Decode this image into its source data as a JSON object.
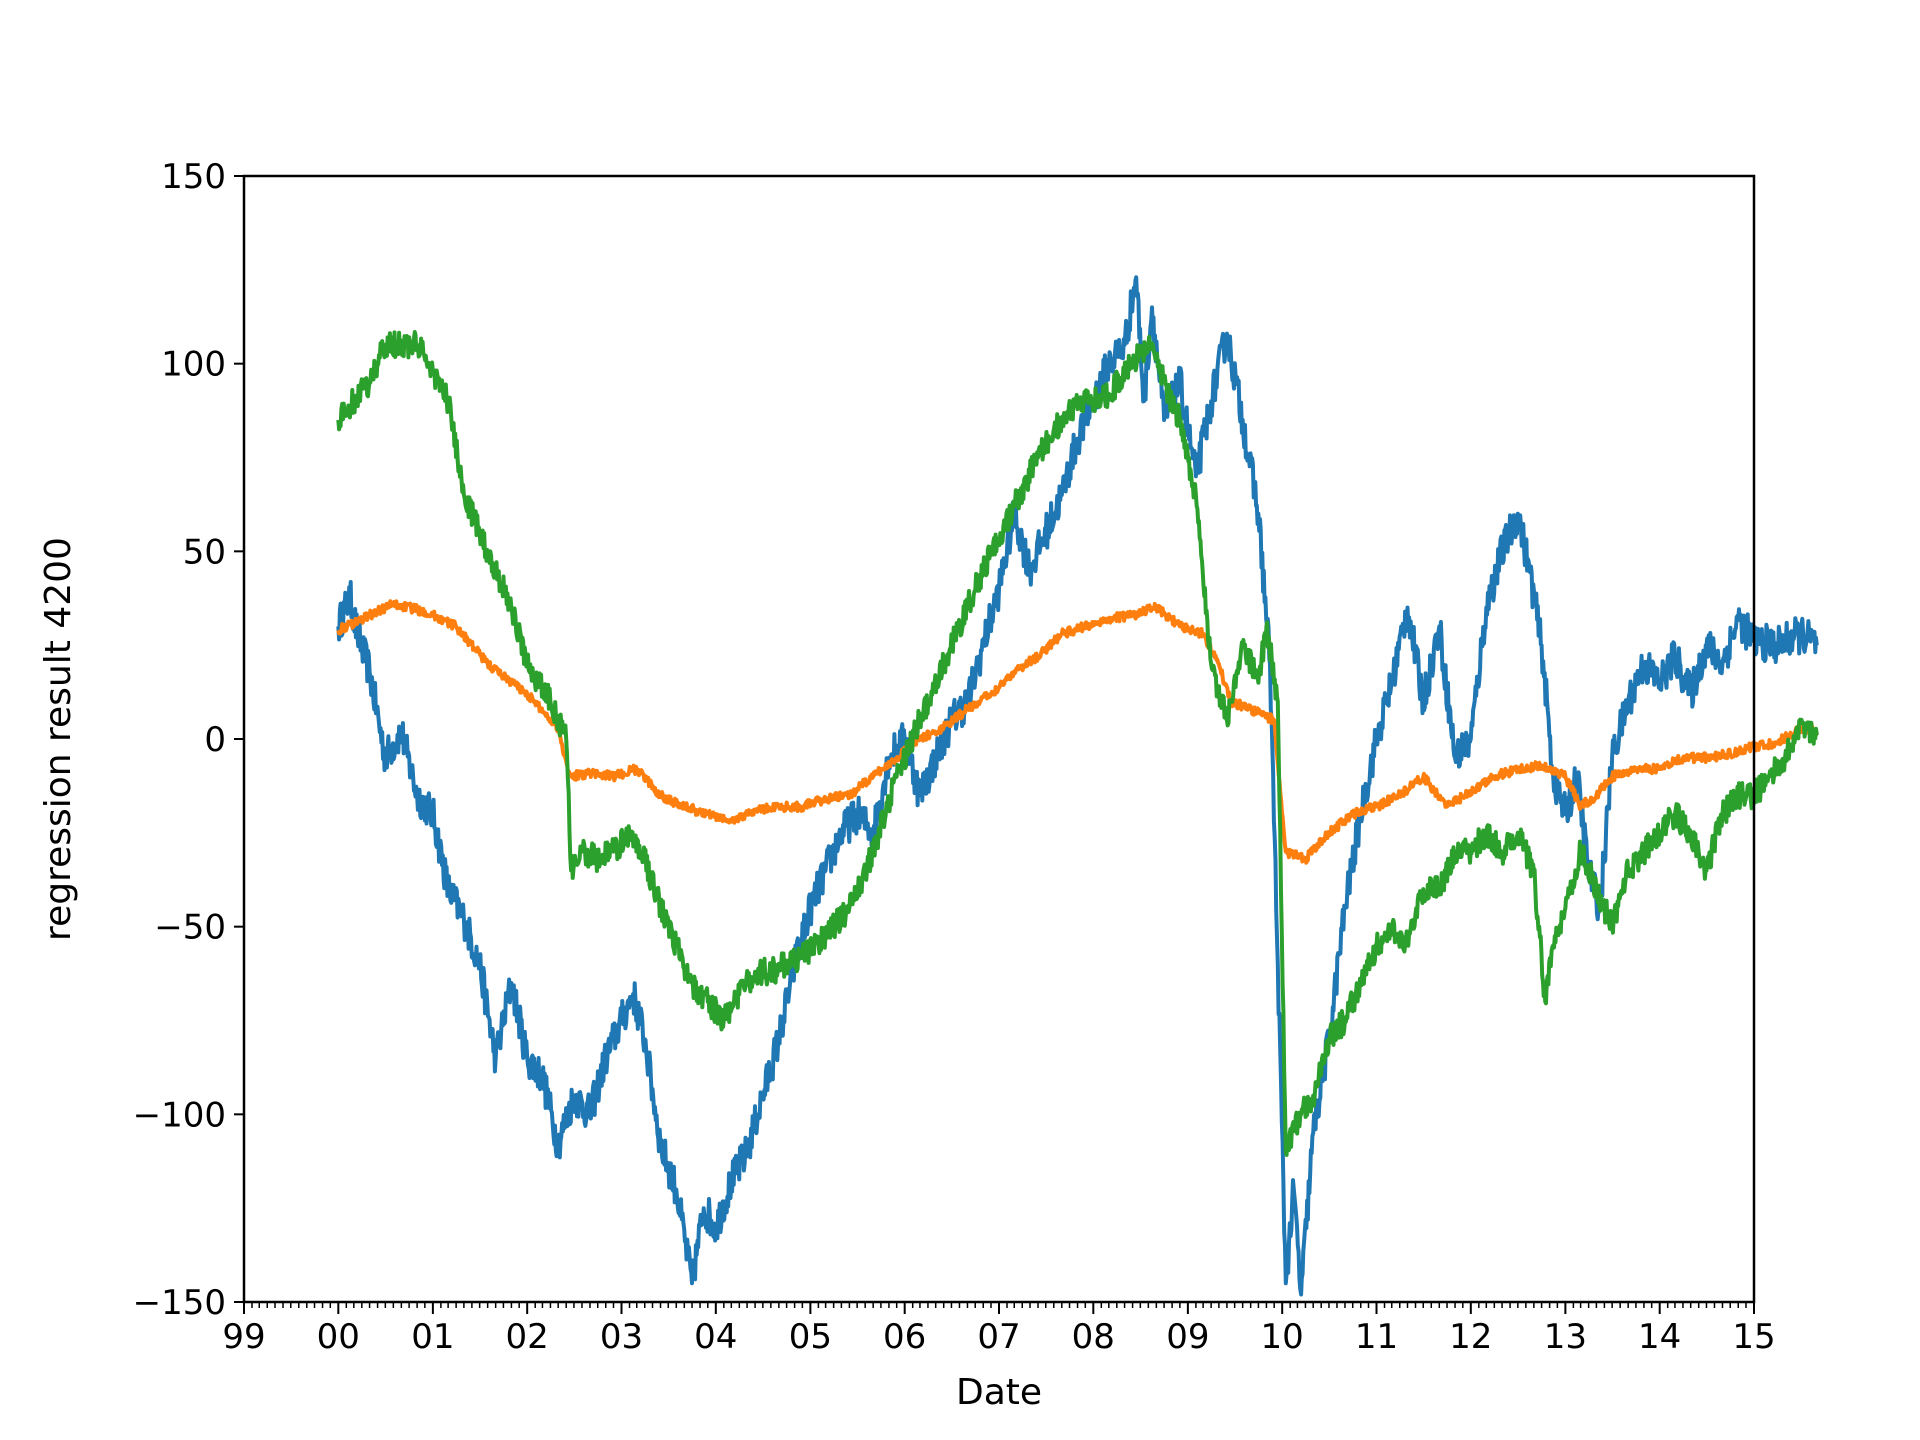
{
  "chart_data": {
    "type": "line",
    "title": "",
    "xlabel": "Date",
    "ylabel": "regression result 4200",
    "xlim": [
      "1999-01-01",
      "2015-01-01"
    ],
    "ylim": [
      -150,
      150
    ],
    "yticks": [
      -150,
      -100,
      -50,
      0,
      50,
      100,
      150
    ],
    "yticklabels": [
      "−150",
      "−100",
      "−50",
      "0",
      "50",
      "100",
      "150"
    ],
    "xticks": [
      "1999-01-01",
      "2000-01-01",
      "2001-01-01",
      "2002-01-01",
      "2003-01-01",
      "2004-01-01",
      "2005-01-01",
      "2006-01-01",
      "2007-01-01",
      "2008-01-01",
      "2009-01-01",
      "2010-01-01",
      "2011-01-01",
      "2012-01-01",
      "2013-01-01",
      "2014-01-01",
      "2015-01-01"
    ],
    "xticklabels": [
      "99",
      "00",
      "01",
      "02",
      "03",
      "04",
      "05",
      "06",
      "07",
      "08",
      "09",
      "10",
      "11",
      "12",
      "13",
      "14",
      "15"
    ],
    "grid": false,
    "legend": "none",
    "series": [
      {
        "color": "#1f77b4",
        "points": [
          [
            "2000-01-01",
            30
          ],
          [
            "2000-02-15",
            38
          ],
          [
            "2000-03-15",
            28
          ],
          [
            "2000-05-01",
            18
          ],
          [
            "2000-07-01",
            -5
          ],
          [
            "2000-09-01",
            2
          ],
          [
            "2000-11-01",
            -15
          ],
          [
            "2001-01-01",
            -20
          ],
          [
            "2001-03-01",
            -40
          ],
          [
            "2001-05-01",
            -48
          ],
          [
            "2001-07-01",
            -60
          ],
          [
            "2001-09-01",
            -85
          ],
          [
            "2001-11-01",
            -65
          ],
          [
            "2002-01-01",
            -85
          ],
          [
            "2002-03-01",
            -90
          ],
          [
            "2002-05-01",
            -108
          ],
          [
            "2002-07-01",
            -95
          ],
          [
            "2002-09-01",
            -100
          ],
          [
            "2002-11-01",
            -85
          ],
          [
            "2003-01-01",
            -75
          ],
          [
            "2003-02-15",
            -68
          ],
          [
            "2003-04-01",
            -80
          ],
          [
            "2003-06-01",
            -108
          ],
          [
            "2003-08-01",
            -120
          ],
          [
            "2003-10-01",
            -145
          ],
          [
            "2003-11-15",
            -125
          ],
          [
            "2004-01-01",
            -130
          ],
          [
            "2004-03-01",
            -118
          ],
          [
            "2004-05-01",
            -110
          ],
          [
            "2004-07-01",
            -95
          ],
          [
            "2004-09-01",
            -80
          ],
          [
            "2004-11-01",
            -60
          ],
          [
            "2005-01-01",
            -45
          ],
          [
            "2005-03-01",
            -35
          ],
          [
            "2005-05-01",
            -25
          ],
          [
            "2005-07-01",
            -20
          ],
          [
            "2005-09-01",
            -25
          ],
          [
            "2005-11-01",
            -5
          ],
          [
            "2006-01-01",
            0
          ],
          [
            "2006-03-01",
            -15
          ],
          [
            "2006-05-01",
            -5
          ],
          [
            "2006-07-01",
            5
          ],
          [
            "2006-09-01",
            10
          ],
          [
            "2006-11-01",
            25
          ],
          [
            "2007-01-01",
            40
          ],
          [
            "2007-03-01",
            60
          ],
          [
            "2007-05-01",
            45
          ],
          [
            "2007-07-01",
            55
          ],
          [
            "2007-09-01",
            65
          ],
          [
            "2007-11-01",
            80
          ],
          [
            "2008-01-01",
            90
          ],
          [
            "2008-03-01",
            100
          ],
          [
            "2008-05-01",
            105
          ],
          [
            "2008-06-15",
            123
          ],
          [
            "2008-07-15",
            90
          ],
          [
            "2008-08-15",
            115
          ],
          [
            "2008-10-01",
            85
          ],
          [
            "2008-12-01",
            95
          ],
          [
            "2009-02-01",
            70
          ],
          [
            "2009-04-01",
            90
          ],
          [
            "2009-06-01",
            108
          ],
          [
            "2009-08-01",
            85
          ],
          [
            "2009-10-01",
            60
          ],
          [
            "2009-11-15",
            20
          ],
          [
            "2009-12-15",
            -60
          ],
          [
            "2010-01-15",
            -145
          ],
          [
            "2010-02-15",
            -120
          ],
          [
            "2010-03-15",
            -148
          ],
          [
            "2010-05-01",
            -105
          ],
          [
            "2010-07-01",
            -80
          ],
          [
            "2010-09-01",
            -45
          ],
          [
            "2010-11-01",
            -20
          ],
          [
            "2011-01-01",
            0
          ],
          [
            "2011-03-01",
            15
          ],
          [
            "2011-05-01",
            35
          ],
          [
            "2011-07-01",
            10
          ],
          [
            "2011-09-01",
            30
          ],
          [
            "2011-11-01",
            -5
          ],
          [
            "2012-01-01",
            0
          ],
          [
            "2012-03-01",
            35
          ],
          [
            "2012-05-01",
            50
          ],
          [
            "2012-07-01",
            60
          ],
          [
            "2012-08-15",
            45
          ],
          [
            "2012-10-01",
            25
          ],
          [
            "2012-11-15",
            -10
          ],
          [
            "2013-01-01",
            -20
          ],
          [
            "2013-02-15",
            -10
          ],
          [
            "2013-04-01",
            -35
          ],
          [
            "2013-05-15",
            -45
          ],
          [
            "2013-07-01",
            -5
          ],
          [
            "2013-09-01",
            10
          ],
          [
            "2013-11-01",
            20
          ],
          [
            "2014-01-01",
            15
          ],
          [
            "2014-03-01",
            22
          ],
          [
            "2014-05-01",
            12
          ],
          [
            "2014-07-01",
            25
          ],
          [
            "2014-09-01",
            20
          ],
          [
            "2014-11-01",
            32
          ],
          [
            "2015-01-01",
            26
          ],
          [
            "2015-04-01",
            25
          ],
          [
            "2015-07-01",
            28
          ],
          [
            "2015-09-01",
            25
          ]
        ]
      },
      {
        "color": "#ff7f0e",
        "points": [
          [
            "2000-01-01",
            29
          ],
          [
            "2000-04-01",
            32
          ],
          [
            "2000-08-01",
            36
          ],
          [
            "2000-12-01",
            34
          ],
          [
            "2001-04-01",
            30
          ],
          [
            "2001-08-01",
            20
          ],
          [
            "2002-01-01",
            12
          ],
          [
            "2002-05-01",
            3
          ],
          [
            "2002-06-15",
            -10
          ],
          [
            "2002-09-01",
            -9
          ],
          [
            "2002-12-01",
            -10
          ],
          [
            "2003-03-01",
            -8
          ],
          [
            "2003-06-01",
            -15
          ],
          [
            "2003-09-01",
            -18
          ],
          [
            "2003-12-01",
            -20
          ],
          [
            "2004-03-01",
            -22
          ],
          [
            "2004-06-01",
            -19
          ],
          [
            "2004-09-01",
            -18
          ],
          [
            "2004-12-01",
            -18
          ],
          [
            "2005-03-01",
            -16
          ],
          [
            "2005-06-01",
            -15
          ],
          [
            "2005-09-01",
            -10
          ],
          [
            "2005-12-01",
            -5
          ],
          [
            "2006-03-01",
            0
          ],
          [
            "2006-06-01",
            3
          ],
          [
            "2006-09-01",
            8
          ],
          [
            "2006-12-01",
            12
          ],
          [
            "2007-03-01",
            18
          ],
          [
            "2007-06-01",
            22
          ],
          [
            "2007-09-01",
            28
          ],
          [
            "2007-12-01",
            30
          ],
          [
            "2008-03-01",
            32
          ],
          [
            "2008-06-01",
            33
          ],
          [
            "2008-09-01",
            35
          ],
          [
            "2008-12-01",
            30
          ],
          [
            "2009-03-01",
            28
          ],
          [
            "2009-05-01",
            20
          ],
          [
            "2009-06-15",
            10
          ],
          [
            "2009-09-01",
            8
          ],
          [
            "2009-12-01",
            5
          ],
          [
            "2010-01-15",
            -30
          ],
          [
            "2010-04-01",
            -32
          ],
          [
            "2010-07-01",
            -25
          ],
          [
            "2010-10-01",
            -20
          ],
          [
            "2011-01-01",
            -18
          ],
          [
            "2011-04-01",
            -15
          ],
          [
            "2011-07-01",
            -10
          ],
          [
            "2011-10-01",
            -18
          ],
          [
            "2012-01-01",
            -14
          ],
          [
            "2012-04-01",
            -10
          ],
          [
            "2012-07-01",
            -8
          ],
          [
            "2012-10-01",
            -7
          ],
          [
            "2013-01-01",
            -10
          ],
          [
            "2013-03-01",
            -18
          ],
          [
            "2013-05-01",
            -15
          ],
          [
            "2013-07-01",
            -10
          ],
          [
            "2013-10-01",
            -8
          ],
          [
            "2014-01-01",
            -8
          ],
          [
            "2014-04-01",
            -5
          ],
          [
            "2014-07-01",
            -5
          ],
          [
            "2014-10-01",
            -4
          ],
          [
            "2015-01-01",
            -2
          ],
          [
            "2015-04-01",
            -1
          ],
          [
            "2015-07-01",
            3
          ],
          [
            "2015-09-01",
            2
          ]
        ]
      },
      {
        "color": "#2ca02c",
        "points": [
          [
            "2000-01-01",
            85
          ],
          [
            "2000-03-01",
            90
          ],
          [
            "2000-05-01",
            95
          ],
          [
            "2000-07-01",
            105
          ],
          [
            "2000-09-01",
            105
          ],
          [
            "2000-11-01",
            105
          ],
          [
            "2001-01-01",
            98
          ],
          [
            "2001-03-01",
            90
          ],
          [
            "2001-05-01",
            65
          ],
          [
            "2001-07-01",
            55
          ],
          [
            "2001-09-01",
            45
          ],
          [
            "2001-11-01",
            35
          ],
          [
            "2002-01-01",
            20
          ],
          [
            "2002-04-01",
            10
          ],
          [
            "2002-06-01",
            0
          ],
          [
            "2002-06-20",
            -35
          ],
          [
            "2002-08-01",
            -30
          ],
          [
            "2002-10-01",
            -32
          ],
          [
            "2002-12-01",
            -30
          ],
          [
            "2003-02-01",
            -25
          ],
          [
            "2003-04-01",
            -32
          ],
          [
            "2003-06-01",
            -45
          ],
          [
            "2003-08-01",
            -55
          ],
          [
            "2003-10-01",
            -65
          ],
          [
            "2003-12-01",
            -70
          ],
          [
            "2004-02-01",
            -75
          ],
          [
            "2004-04-01",
            -68
          ],
          [
            "2004-06-01",
            -62
          ],
          [
            "2004-08-01",
            -62
          ],
          [
            "2004-10-01",
            -60
          ],
          [
            "2004-12-01",
            -58
          ],
          [
            "2005-03-01",
            -52
          ],
          [
            "2005-06-01",
            -45
          ],
          [
            "2005-09-01",
            -30
          ],
          [
            "2005-12-01",
            -10
          ],
          [
            "2006-03-01",
            5
          ],
          [
            "2006-06-01",
            20
          ],
          [
            "2006-09-01",
            35
          ],
          [
            "2006-12-01",
            50
          ],
          [
            "2007-03-01",
            62
          ],
          [
            "2007-06-01",
            75
          ],
          [
            "2007-09-01",
            85
          ],
          [
            "2007-12-01",
            90
          ],
          [
            "2008-03-01",
            92
          ],
          [
            "2008-06-01",
            100
          ],
          [
            "2008-08-01",
            105
          ],
          [
            "2008-10-01",
            95
          ],
          [
            "2008-12-01",
            85
          ],
          [
            "2009-02-01",
            65
          ],
          [
            "2009-04-01",
            20
          ],
          [
            "2009-06-01",
            5
          ],
          [
            "2009-08-01",
            25
          ],
          [
            "2009-10-01",
            15
          ],
          [
            "2009-11-01",
            30
          ],
          [
            "2009-12-15",
            10
          ],
          [
            "2010-01-15",
            -110
          ],
          [
            "2010-03-15",
            -100
          ],
          [
            "2010-05-01",
            -95
          ],
          [
            "2010-07-01",
            -80
          ],
          [
            "2010-09-01",
            -75
          ],
          [
            "2010-11-01",
            -65
          ],
          [
            "2011-01-01",
            -55
          ],
          [
            "2011-03-01",
            -50
          ],
          [
            "2011-05-01",
            -55
          ],
          [
            "2011-07-01",
            -40
          ],
          [
            "2011-09-01",
            -40
          ],
          [
            "2011-11-01",
            -30
          ],
          [
            "2012-01-01",
            -30
          ],
          [
            "2012-03-01",
            -25
          ],
          [
            "2012-05-01",
            -30
          ],
          [
            "2012-07-01",
            -25
          ],
          [
            "2012-09-01",
            -35
          ],
          [
            "2012-10-15",
            -70
          ],
          [
            "2012-11-15",
            -55
          ],
          [
            "2013-01-01",
            -45
          ],
          [
            "2013-03-01",
            -30
          ],
          [
            "2013-05-01",
            -40
          ],
          [
            "2013-07-01",
            -50
          ],
          [
            "2013-09-01",
            -35
          ],
          [
            "2013-11-01",
            -30
          ],
          [
            "2014-01-01",
            -25
          ],
          [
            "2014-03-01",
            -20
          ],
          [
            "2014-05-01",
            -25
          ],
          [
            "2014-07-01",
            -35
          ],
          [
            "2014-09-01",
            -20
          ],
          [
            "2014-11-01",
            -15
          ],
          [
            "2015-01-01",
            -15
          ],
          [
            "2015-03-01",
            -10
          ],
          [
            "2015-05-01",
            -5
          ],
          [
            "2015-07-01",
            5
          ],
          [
            "2015-09-01",
            1
          ]
        ]
      }
    ]
  }
}
